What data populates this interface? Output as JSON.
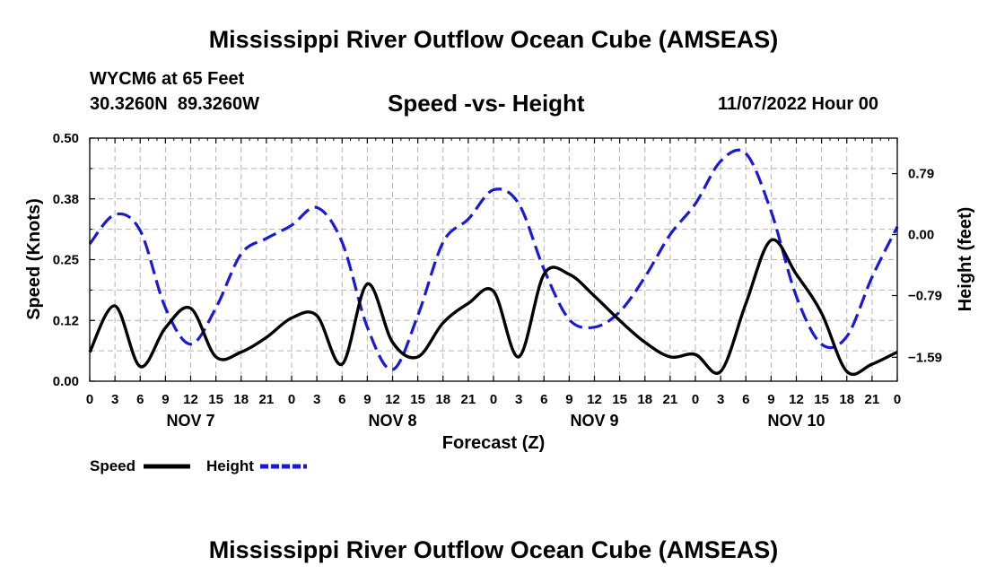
{
  "header": {
    "title": "Mississippi River Outflow Ocean Cube (AMSEAS)",
    "station_line": "WYCM6 at 65 Feet",
    "coords_line": "30.3260N  89.3260W",
    "date_line": "11/07/2022 Hour 00"
  },
  "footer": {
    "title": "Mississippi River Outflow Ocean Cube (AMSEAS)"
  },
  "chart_data": {
    "type": "line",
    "title": "Speed -vs- Height",
    "xlabel": "Forecast (Z)",
    "ylabel": "Speed (Knots)",
    "y2label": "Height (feet)",
    "x_unit": "hours from 11/07/2022 00Z",
    "xlim": [
      0,
      96
    ],
    "x_tick_labels": [
      "0",
      "3",
      "6",
      "9",
      "12",
      "15",
      "18",
      "21",
      "0",
      "3",
      "6",
      "9",
      "12",
      "15",
      "18",
      "21",
      "0",
      "3",
      "6",
      "9",
      "12",
      "15",
      "18",
      "21",
      "0",
      "3",
      "6",
      "9",
      "12",
      "15",
      "18",
      "21",
      "0"
    ],
    "day_labels": [
      "NOV 7",
      "NOV 8",
      "NOV 9",
      "NOV 10"
    ],
    "ylim": [
      0,
      0.5
    ],
    "y_tick_labels": [
      "0.00",
      "0.12",
      "0.25",
      "0.38",
      "0.50"
    ],
    "y2lim": [
      -1.9,
      1.25
    ],
    "y2_tick_values": [
      -1.59,
      -0.79,
      0.0,
      0.79
    ],
    "y2_tick_labels": [
      "−1.59",
      "−0.79",
      "0.00",
      "0.79"
    ],
    "grid": true,
    "legend_position": "bottom-left",
    "series": [
      {
        "name": "Speed",
        "axis": "left",
        "color": "#000000",
        "style": "solid",
        "x": [
          0,
          3,
          6,
          9,
          12,
          15,
          18,
          21,
          24,
          27,
          30,
          33,
          36,
          39,
          42,
          45,
          48,
          51,
          54,
          57,
          60,
          63,
          66,
          69,
          72,
          75,
          78,
          81,
          84,
          87,
          90,
          93,
          96
        ],
        "values": [
          0.06,
          0.155,
          0.03,
          0.11,
          0.15,
          0.05,
          0.06,
          0.09,
          0.13,
          0.135,
          0.035,
          0.2,
          0.08,
          0.05,
          0.12,
          0.16,
          0.185,
          0.05,
          0.22,
          0.22,
          0.175,
          0.125,
          0.08,
          0.05,
          0.055,
          0.02,
          0.16,
          0.29,
          0.22,
          0.14,
          0.02,
          0.035,
          0.06
        ]
      },
      {
        "name": "Height",
        "axis": "right",
        "color": "#1a1ad4",
        "style": "dashed",
        "x": [
          0,
          3,
          6,
          9,
          12,
          15,
          18,
          21,
          24,
          27,
          30,
          33,
          36,
          39,
          42,
          45,
          48,
          51,
          54,
          57,
          60,
          63,
          66,
          69,
          72,
          75,
          78,
          81,
          84,
          87,
          90,
          93,
          96
        ],
        "values": [
          -0.12,
          0.26,
          0.05,
          -0.95,
          -1.42,
          -0.95,
          -0.25,
          -0.05,
          0.12,
          0.35,
          -0.1,
          -1.2,
          -1.75,
          -1.05,
          -0.1,
          0.2,
          0.58,
          0.4,
          -0.45,
          -1.1,
          -1.2,
          -1.0,
          -0.55,
          -0.0,
          0.4,
          0.95,
          1.05,
          0.3,
          -0.8,
          -1.42,
          -1.32,
          -0.55,
          0.1
        ]
      }
    ]
  }
}
